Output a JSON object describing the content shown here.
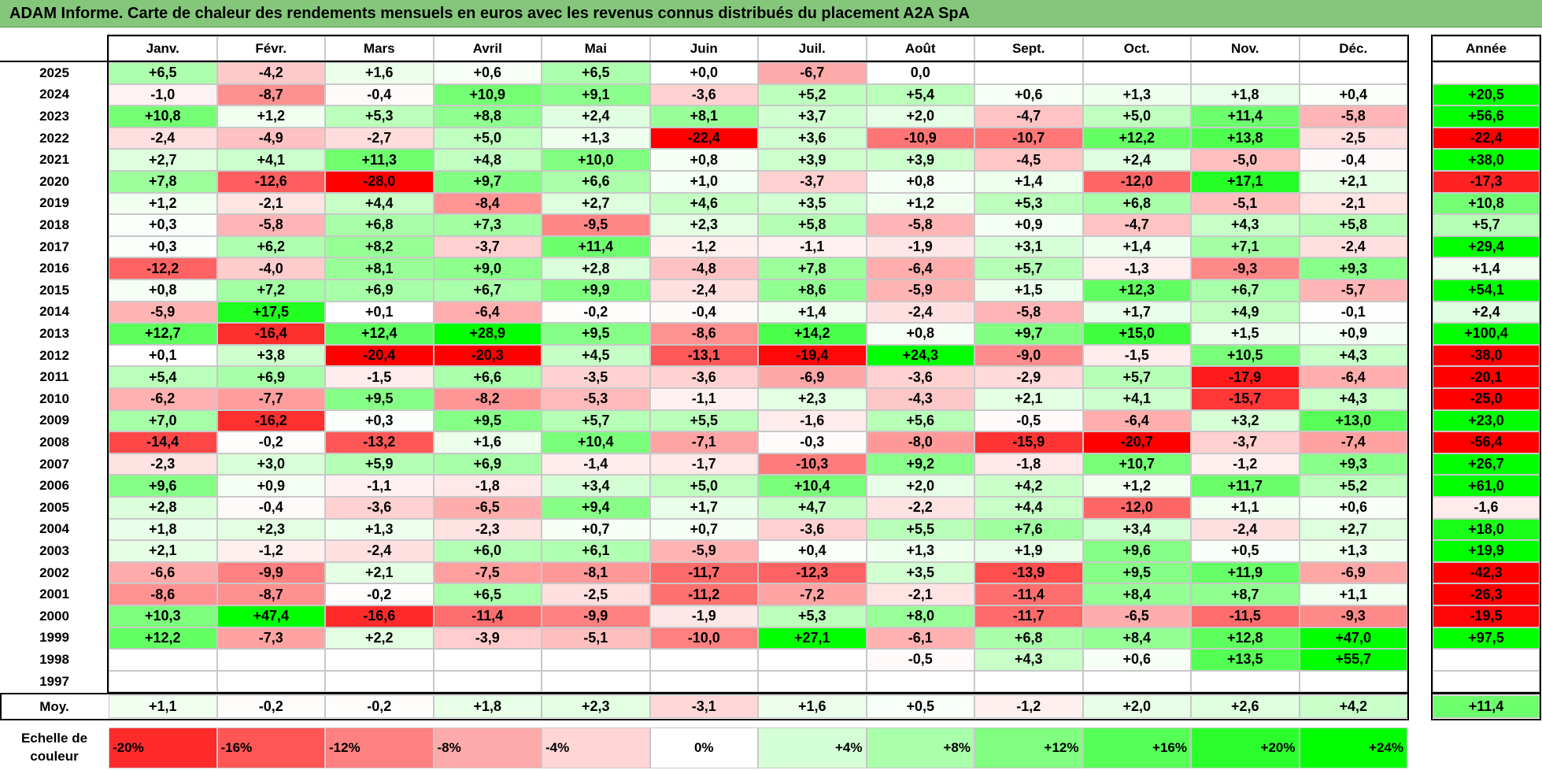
{
  "title": "ADAM Informe. Carte de chaleur des rendements mensuels en euros avec les revenus connus distribués du placement A2A SpA",
  "chart_data": {
    "type": "heatmap",
    "columns": [
      "Janv.",
      "Févr.",
      "Mars",
      "Avril",
      "Mai",
      "Juin",
      "Juil.",
      "Août",
      "Sept.",
      "Oct.",
      "Nov.",
      "Déc."
    ],
    "year_column_label": "Année",
    "rows": [
      {
        "year": "2025",
        "values": [
          "+6,5",
          "-4,2",
          "+1,6",
          "+0,6",
          "+6,5",
          "+0,0",
          "-6,7",
          "0,0",
          "",
          "",
          "",
          ""
        ],
        "annual": ""
      },
      {
        "year": "2024",
        "values": [
          "-1,0",
          "-8,7",
          "-0,4",
          "+10,9",
          "+9,1",
          "-3,6",
          "+5,2",
          "+5,4",
          "+0,6",
          "+1,3",
          "+1,8",
          "+0,4"
        ],
        "annual": "+20,5"
      },
      {
        "year": "2023",
        "values": [
          "+10,8",
          "+1,2",
          "+5,3",
          "+8,8",
          "+2,4",
          "+8,1",
          "+3,7",
          "+2,0",
          "-4,7",
          "+5,0",
          "+11,4",
          "-5,8"
        ],
        "annual": "+56,6"
      },
      {
        "year": "2022",
        "values": [
          "-2,4",
          "-4,9",
          "-2,7",
          "+5,0",
          "+1,3",
          "-22,4",
          "+3,6",
          "-10,9",
          "-10,7",
          "+12,2",
          "+13,8",
          "-2,5"
        ],
        "annual": "-22,4"
      },
      {
        "year": "2021",
        "values": [
          "+2,7",
          "+4,1",
          "+11,3",
          "+4,8",
          "+10,0",
          "+0,8",
          "+3,9",
          "+3,9",
          "-4,5",
          "+2,4",
          "-5,0",
          "-0,4"
        ],
        "annual": "+38,0"
      },
      {
        "year": "2020",
        "values": [
          "+7,8",
          "-12,6",
          "-28,0",
          "+9,7",
          "+6,6",
          "+1,0",
          "-3,7",
          "+0,8",
          "+1,4",
          "-12,0",
          "+17,1",
          "+2,1"
        ],
        "annual": "-17,3"
      },
      {
        "year": "2019",
        "values": [
          "+1,2",
          "-2,1",
          "+4,4",
          "-8,4",
          "+2,7",
          "+4,6",
          "+3,5",
          "+1,2",
          "+5,3",
          "+6,8",
          "-5,1",
          "-2,1"
        ],
        "annual": "+10,8"
      },
      {
        "year": "2018",
        "values": [
          "+0,3",
          "-5,8",
          "+6,8",
          "+7,3",
          "-9,5",
          "+2,3",
          "+5,8",
          "-5,8",
          "+0,9",
          "-4,7",
          "+4,3",
          "+5,8"
        ],
        "annual": "+5,7"
      },
      {
        "year": "2017",
        "values": [
          "+0,3",
          "+6,2",
          "+8,2",
          "-3,7",
          "+11,4",
          "-1,2",
          "-1,1",
          "-1,9",
          "+3,1",
          "+1,4",
          "+7,1",
          "-2,4"
        ],
        "annual": "+29,4"
      },
      {
        "year": "2016",
        "values": [
          "-12,2",
          "-4,0",
          "+8,1",
          "+9,0",
          "+2,8",
          "-4,8",
          "+7,8",
          "-6,4",
          "+5,7",
          "-1,3",
          "-9,3",
          "+9,3"
        ],
        "annual": "+1,4"
      },
      {
        "year": "2015",
        "values": [
          "+0,8",
          "+7,2",
          "+6,9",
          "+6,7",
          "+9,9",
          "-2,4",
          "+8,6",
          "-5,9",
          "+1,5",
          "+12,3",
          "+6,7",
          "-5,7"
        ],
        "annual": "+54,1"
      },
      {
        "year": "2014",
        "values": [
          "-5,9",
          "+17,5",
          "+0,1",
          "-6,4",
          "-0,2",
          "-0,4",
          "+1,4",
          "-2,4",
          "-5,8",
          "+1,7",
          "+4,9",
          "-0,1"
        ],
        "annual": "+2,4"
      },
      {
        "year": "2013",
        "values": [
          "+12,7",
          "-16,4",
          "+12,4",
          "+28,9",
          "+9,5",
          "-8,6",
          "+14,2",
          "+0,8",
          "+9,7",
          "+15,0",
          "+1,5",
          "+0,9"
        ],
        "annual": "+100,4"
      },
      {
        "year": "2012",
        "values": [
          "+0,1",
          "+3,8",
          "-20,4",
          "-20,3",
          "+4,5",
          "-13,1",
          "-19,4",
          "+24,3",
          "-9,0",
          "-1,5",
          "+10,5",
          "+4,3"
        ],
        "annual": "-38,0"
      },
      {
        "year": "2011",
        "values": [
          "+5,4",
          "+6,9",
          "-1,5",
          "+6,6",
          "-3,5",
          "-3,6",
          "-6,9",
          "-3,6",
          "-2,9",
          "+5,7",
          "-17,9",
          "-6,4"
        ],
        "annual": "-20,1"
      },
      {
        "year": "2010",
        "values": [
          "-6,2",
          "-7,7",
          "+9,5",
          "-8,2",
          "-5,3",
          "-1,1",
          "+2,3",
          "-4,3",
          "+2,1",
          "+4,1",
          "-15,7",
          "+4,3"
        ],
        "annual": "-25,0"
      },
      {
        "year": "2009",
        "values": [
          "+7,0",
          "-16,2",
          "+0,3",
          "+9,5",
          "+5,7",
          "+5,5",
          "-1,6",
          "+5,6",
          "-0,5",
          "-6,4",
          "+3,2",
          "+13,0"
        ],
        "annual": "+23,0"
      },
      {
        "year": "2008",
        "values": [
          "-14,4",
          "-0,2",
          "-13,2",
          "+1,6",
          "+10,4",
          "-7,1",
          "-0,3",
          "-8,0",
          "-15,9",
          "-20,7",
          "-3,7",
          "-7,4"
        ],
        "annual": "-56,4"
      },
      {
        "year": "2007",
        "values": [
          "-2,3",
          "+3,0",
          "+5,9",
          "+6,9",
          "-1,4",
          "-1,7",
          "-10,3",
          "+9,2",
          "-1,8",
          "+10,7",
          "-1,2",
          "+9,3"
        ],
        "annual": "+26,7"
      },
      {
        "year": "2006",
        "values": [
          "+9,6",
          "+0,9",
          "-1,1",
          "-1,8",
          "+3,4",
          "+5,0",
          "+10,4",
          "+2,0",
          "+4,2",
          "+1,2",
          "+11,7",
          "+5,2"
        ],
        "annual": "+61,0"
      },
      {
        "year": "2005",
        "values": [
          "+2,8",
          "-0,4",
          "-3,6",
          "-6,5",
          "+9,4",
          "+1,7",
          "+4,7",
          "-2,2",
          "+4,4",
          "-12,0",
          "+1,1",
          "+0,6"
        ],
        "annual": "-1,6"
      },
      {
        "year": "2004",
        "values": [
          "+1,8",
          "+2,3",
          "+1,3",
          "-2,3",
          "+0,7",
          "+0,7",
          "-3,6",
          "+5,5",
          "+7,6",
          "+3,4",
          "-2,4",
          "+2,7"
        ],
        "annual": "+18,0"
      },
      {
        "year": "2003",
        "values": [
          "+2,1",
          "-1,2",
          "-2,4",
          "+6,0",
          "+6,1",
          "-5,9",
          "+0,4",
          "+1,3",
          "+1,9",
          "+9,6",
          "+0,5",
          "+1,3"
        ],
        "annual": "+19,9"
      },
      {
        "year": "2002",
        "values": [
          "-6,6",
          "-9,9",
          "+2,1",
          "-7,5",
          "-8,1",
          "-11,7",
          "-12,3",
          "+3,5",
          "-13,9",
          "+9,5",
          "+11,9",
          "-6,9"
        ],
        "annual": "-42,3"
      },
      {
        "year": "2001",
        "values": [
          "-8,6",
          "-8,7",
          "-0,2",
          "+6,5",
          "-2,5",
          "-11,2",
          "-7,2",
          "-2,1",
          "-11,4",
          "+8,4",
          "+8,7",
          "+1,1"
        ],
        "annual": "-26,3"
      },
      {
        "year": "2000",
        "values": [
          "+10,3",
          "+47,4",
          "-16,6",
          "-11,4",
          "-9,9",
          "-1,9",
          "+5,3",
          "+8,0",
          "-11,7",
          "-6,5",
          "-11,5",
          "-9,3"
        ],
        "annual": "-19,5"
      },
      {
        "year": "1999",
        "values": [
          "+12,2",
          "-7,3",
          "+2,2",
          "-3,9",
          "-5,1",
          "-10,0",
          "+27,1",
          "-6,1",
          "+6,8",
          "+8,4",
          "+12,8",
          "+47,0"
        ],
        "annual": "+97,5"
      },
      {
        "year": "1998",
        "values": [
          "",
          "",
          "",
          "",
          "",
          "",
          "",
          "-0,5",
          "+4,3",
          "+0,6",
          "+13,5",
          "+55,7"
        ],
        "annual": ""
      },
      {
        "year": "1997",
        "values": [
          "",
          "",
          "",
          "",
          "",
          "",
          "",
          "",
          "",
          "",
          "",
          ""
        ],
        "annual": ""
      }
    ],
    "average": {
      "label": "Moy.",
      "values": [
        "+1,1",
        "-0,2",
        "-0,2",
        "+1,8",
        "+2,3",
        "-3,1",
        "+1,6",
        "+0,5",
        "-1,2",
        "+2,0",
        "+2,6",
        "+4,2"
      ],
      "annual": "+11,4"
    },
    "scale": {
      "label": "Echelle de couleur",
      "entries": [
        {
          "text": "-20%",
          "value": -20
        },
        {
          "text": "-16%",
          "value": -16
        },
        {
          "text": "-12%",
          "value": -12
        },
        {
          "text": "-8%",
          "value": -8
        },
        {
          "text": "-4%",
          "value": -4
        },
        {
          "text": "0%",
          "value": 0
        },
        {
          "text": "+4%",
          "value": 4
        },
        {
          "text": "+8%",
          "value": 8
        },
        {
          "text": "+12%",
          "value": 12
        },
        {
          "text": "+16%",
          "value": 16
        },
        {
          "text": "+20%",
          "value": 20
        },
        {
          "text": "+24%",
          "value": 24
        }
      ]
    },
    "colors": {
      "negative_max": "#ff0000",
      "neutral": "#ffffff",
      "positive_max": "#00ff00"
    }
  }
}
